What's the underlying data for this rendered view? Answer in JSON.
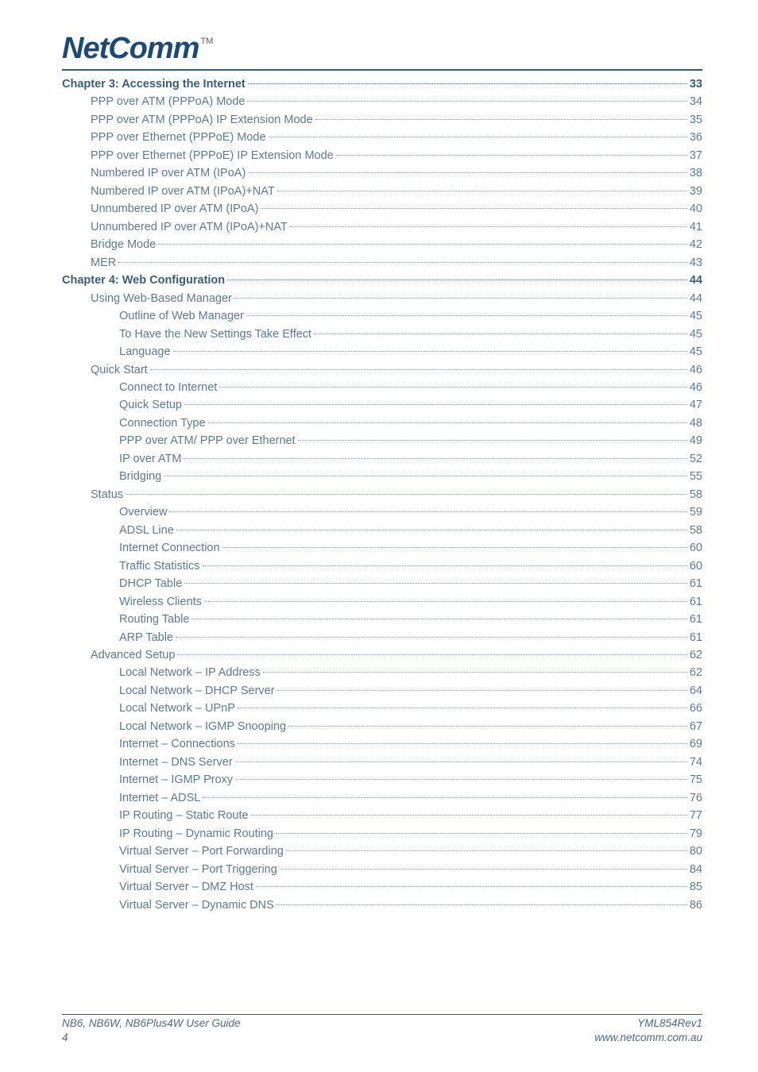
{
  "logo_text": "NetComm",
  "tm": "TM",
  "toc": [
    {
      "level": 0,
      "label": "Chapter 3: Accessing the Internet",
      "page": "33"
    },
    {
      "level": 1,
      "label": "PPP over ATM (PPPoA) Mode",
      "page": "34"
    },
    {
      "level": 1,
      "label": "PPP over ATM (PPPoA) IP Extension Mode",
      "page": "35"
    },
    {
      "level": 1,
      "label": "PPP over Ethernet (PPPoE) Mode",
      "page": "36"
    },
    {
      "level": 1,
      "label": "PPP over Ethernet (PPPoE) IP Extension Mode",
      "page": "37"
    },
    {
      "level": 1,
      "label": "Numbered IP over ATM (IPoA)",
      "page": "38"
    },
    {
      "level": 1,
      "label": "Numbered IP over ATM (IPoA)+NAT",
      "page": "39"
    },
    {
      "level": 1,
      "label": "Unnumbered IP over ATM (IPoA)",
      "page": "40"
    },
    {
      "level": 1,
      "label": "Unnumbered IP over ATM (IPoA)+NAT",
      "page": "41"
    },
    {
      "level": 1,
      "label": "Bridge Mode",
      "page": "42"
    },
    {
      "level": 1,
      "label": "MER",
      "page": "43"
    },
    {
      "level": 0,
      "label": "Chapter 4: Web Configuration",
      "page": "44"
    },
    {
      "level": 1,
      "label": "Using Web-Based Manager",
      "page": "44"
    },
    {
      "level": 2,
      "label": "Outline of Web Manager",
      "page": "45"
    },
    {
      "level": 2,
      "label": "To Have the New Settings Take Effect",
      "page": "45"
    },
    {
      "level": 2,
      "label": "Language",
      "page": "45"
    },
    {
      "level": 1,
      "label": "Quick Start",
      "page": "46"
    },
    {
      "level": 2,
      "label": "Connect to Internet",
      "page": "46"
    },
    {
      "level": 2,
      "label": "Quick Setup",
      "page": "47"
    },
    {
      "level": 2,
      "label": "Connection Type",
      "page": "48"
    },
    {
      "level": 2,
      "label": "PPP over ATM/ PPP over Ethernet",
      "page": "49"
    },
    {
      "level": 2,
      "label": "IP over ATM",
      "page": "52"
    },
    {
      "level": 2,
      "label": "Bridging",
      "page": "55"
    },
    {
      "level": 1,
      "label": "Status",
      "page": "58"
    },
    {
      "level": 2,
      "label": "Overview",
      "page": "59"
    },
    {
      "level": 2,
      "label": "ADSL Line",
      "page": "58"
    },
    {
      "level": 2,
      "label": "Internet Connection",
      "page": "60"
    },
    {
      "level": 2,
      "label": "Traffic Statistics",
      "page": "60"
    },
    {
      "level": 2,
      "label": "DHCP Table",
      "page": "61"
    },
    {
      "level": 2,
      "label": "Wireless Clients",
      "page": "61"
    },
    {
      "level": 2,
      "label": "Routing Table",
      "page": "61"
    },
    {
      "level": 2,
      "label": "ARP Table",
      "page": "61"
    },
    {
      "level": 1,
      "label": "Advanced Setup",
      "page": "62"
    },
    {
      "level": 2,
      "label": "Local Network – IP Address",
      "page": "62"
    },
    {
      "level": 2,
      "label": "Local Network – DHCP Server",
      "page": "64"
    },
    {
      "level": 2,
      "label": "Local Network – UPnP",
      "page": "66"
    },
    {
      "level": 2,
      "label": "Local Network – IGMP Snooping",
      "page": "67"
    },
    {
      "level": 2,
      "label": "Internet – Connections",
      "page": "69"
    },
    {
      "level": 2,
      "label": "Internet – DNS Server",
      "page": "74"
    },
    {
      "level": 2,
      "label": "Internet – IGMP Proxy",
      "page": "75"
    },
    {
      "level": 2,
      "label": "Internet – ADSL",
      "page": "76"
    },
    {
      "level": 2,
      "label": "IP Routing – Static Route",
      "page": "77"
    },
    {
      "level": 2,
      "label": "IP Routing – Dynamic Routing",
      "page": "79"
    },
    {
      "level": 2,
      "label": "Virtual Server – Port Forwarding",
      "page": "80"
    },
    {
      "level": 2,
      "label": "Virtual Server – Port Triggering",
      "page": "84"
    },
    {
      "level": 2,
      "label": "Virtual Server – DMZ Host",
      "page": "85"
    },
    {
      "level": 2,
      "label": "Virtual Server – Dynamic DNS",
      "page": "86"
    }
  ],
  "footer": {
    "left_line1": "NB6, NB6W, NB6Plus4W User Guide",
    "left_line2": "4",
    "right_line1": "YML854Rev1",
    "right_line2": "www.netcomm.com.au"
  }
}
